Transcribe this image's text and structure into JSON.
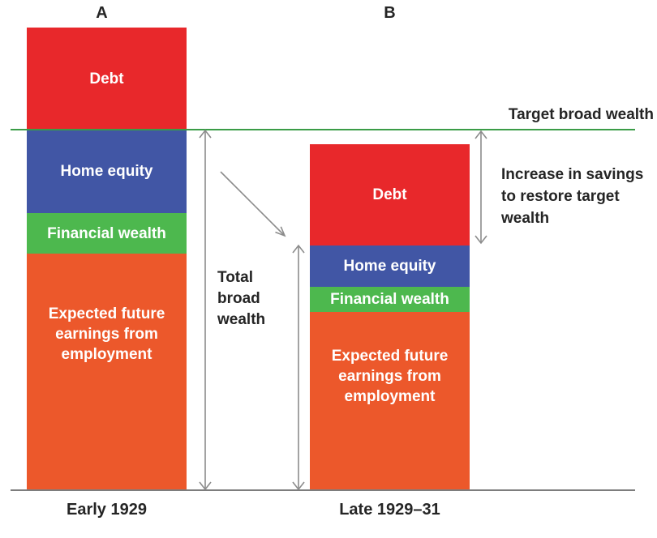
{
  "labels": {
    "panel_a": "A",
    "panel_b": "B",
    "target_line": "Target broad wealth",
    "total_broad_wealth": "Total broad wealth",
    "increase_savings": "Increase in savings to restore target wealth"
  },
  "colors": {
    "debt": "#e8282b",
    "home_equity": "#4156a5",
    "financial_wealth": "#4db84e",
    "expected_earnings": "#ec582b",
    "target_line": "#3b9c47",
    "axis_line": "#7d7d7d",
    "arrow": "#8c8c8c",
    "text_dark": "#252525",
    "text_light": "#ffffff"
  },
  "chart_data": {
    "type": "bar",
    "stacked": true,
    "title": "",
    "categories": [
      "Early 1929",
      "Late 1929–31"
    ],
    "series": [
      {
        "name": "Debt",
        "key": "debt",
        "values": [
          126,
          125
        ]
      },
      {
        "name": "Home equity",
        "key": "home_equity",
        "values": [
          103,
          51
        ]
      },
      {
        "name": "Financial wealth",
        "key": "financial_wealth",
        "values": [
          50,
          31
        ]
      },
      {
        "name": "Expected future earnings from employment",
        "key": "expected_earnings",
        "values": [
          292,
          220
        ]
      }
    ],
    "target_broad_wealth_level": 445,
    "broad_wealth_early_1929": 445,
    "broad_wealth_late_1929_31": 302,
    "increase_in_savings_needed": 143,
    "ylim": [
      0,
      571
    ],
    "grid": false,
    "legend_position": "labels inside bar segments",
    "annotations": [
      "Target broad wealth",
      "Total broad wealth",
      "Increase in savings to restore target wealth"
    ]
  }
}
